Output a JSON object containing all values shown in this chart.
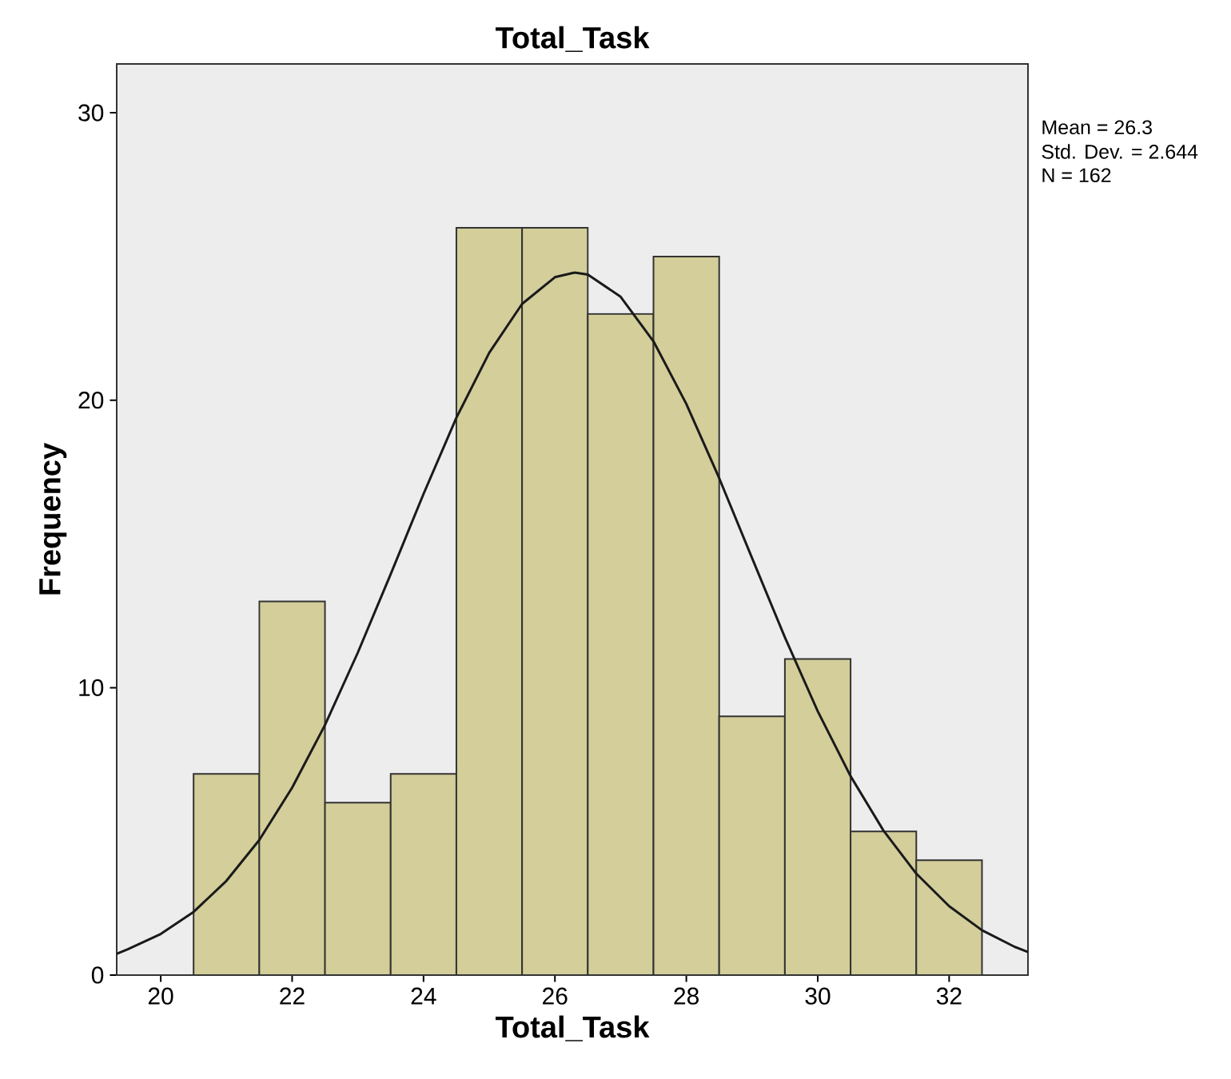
{
  "chart_data": {
    "type": "histogram",
    "title": "Total_Task",
    "xlabel": "Total_Task",
    "ylabel": "Frequency",
    "bins": [
      20.5,
      21.5,
      22.5,
      23.5,
      24.5,
      25.5,
      26.5,
      27.5,
      28.5,
      29.5,
      30.5,
      31.5,
      32.5
    ],
    "values": [
      7,
      13,
      6,
      7,
      26,
      26,
      23,
      25,
      9,
      11,
      5,
      4
    ],
    "color": "#d3ce9a",
    "series": [
      {
        "type": "line",
        "color": "#1a1a1a",
        "x": [
          19.33,
          19.5,
          20,
          20.5,
          21,
          21.5,
          22,
          22.5,
          23,
          23.5,
          24,
          24.5,
          25,
          25.5,
          26,
          26.3,
          26.5,
          27,
          27.5,
          28,
          28.5,
          29,
          29.5,
          30,
          30.5,
          31,
          31.5,
          32,
          32.5,
          33,
          33.2
        ],
        "values": [
          0.74,
          0.9,
          1.43,
          2.2,
          3.28,
          4.7,
          6.52,
          8.7,
          11.22,
          13.95,
          16.74,
          19.39,
          21.65,
          23.35,
          24.28,
          24.44,
          24.37,
          23.6,
          22.05,
          19.87,
          17.29,
          14.51,
          11.75,
          9.18,
          6.92,
          5.03,
          3.53,
          2.4,
          1.56,
          0.98,
          0.8
        ]
      }
    ],
    "xlim": [
      19.33,
      33.2
    ],
    "ylim": [
      0,
      31.7
    ],
    "xticks": [
      20,
      22,
      24,
      26,
      28,
      30,
      32
    ],
    "yticks": [
      0,
      10,
      20,
      30
    ],
    "annotations": [
      "Mean = 26.3",
      "Std. Dev. = 2.644",
      "N = 162"
    ],
    "grid": false
  }
}
